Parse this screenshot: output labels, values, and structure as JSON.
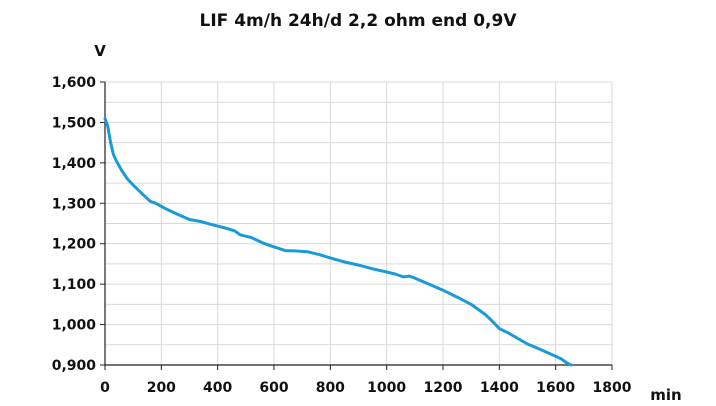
{
  "chart_data": {
    "type": "line",
    "title": "LIF 4m/h 24h/d 2,2 ohm end 0,9V",
    "xlabel": "min",
    "ylabel": "V",
    "xlim": [
      0,
      1800
    ],
    "ylim": [
      0.9,
      1.6
    ],
    "x_ticks": [
      0,
      200,
      400,
      600,
      800,
      1000,
      1200,
      1400,
      1600,
      1800
    ],
    "x_tick_labels": [
      "0",
      "200",
      "400",
      "600",
      "800",
      "1000",
      "1200",
      "1400",
      "1600",
      "1800"
    ],
    "y_ticks": [
      0.9,
      1.0,
      1.1,
      1.2,
      1.3,
      1.4,
      1.5,
      1.6
    ],
    "y_tick_labels": [
      "0,900",
      "1,000",
      "1,100",
      "1,200",
      "1,300",
      "1,400",
      "1,500",
      "1,600"
    ],
    "grid": true,
    "line_color": "#1a9ad6",
    "series": [
      {
        "x": [
          0,
          10,
          20,
          30,
          40,
          60,
          80,
          100,
          130,
          160,
          180,
          220,
          260,
          300,
          340,
          380,
          420,
          460,
          480,
          520,
          560,
          600,
          640,
          680,
          720,
          760,
          800,
          850,
          900,
          950,
          1000,
          1030,
          1060,
          1080,
          1100,
          1150,
          1200,
          1250,
          1300,
          1350,
          1380,
          1400,
          1430,
          1460,
          1500,
          1540,
          1580,
          1620,
          1640,
          1655
        ],
        "y": [
          1.51,
          1.49,
          1.45,
          1.42,
          1.405,
          1.38,
          1.36,
          1.345,
          1.325,
          1.305,
          1.3,
          1.285,
          1.272,
          1.26,
          1.255,
          1.247,
          1.24,
          1.232,
          1.222,
          1.215,
          1.202,
          1.192,
          1.183,
          1.182,
          1.18,
          1.173,
          1.165,
          1.155,
          1.147,
          1.138,
          1.13,
          1.125,
          1.118,
          1.12,
          1.115,
          1.1,
          1.085,
          1.068,
          1.05,
          1.025,
          1.005,
          0.99,
          0.98,
          0.968,
          0.952,
          0.94,
          0.928,
          0.915,
          0.905,
          0.9
        ]
      }
    ]
  }
}
